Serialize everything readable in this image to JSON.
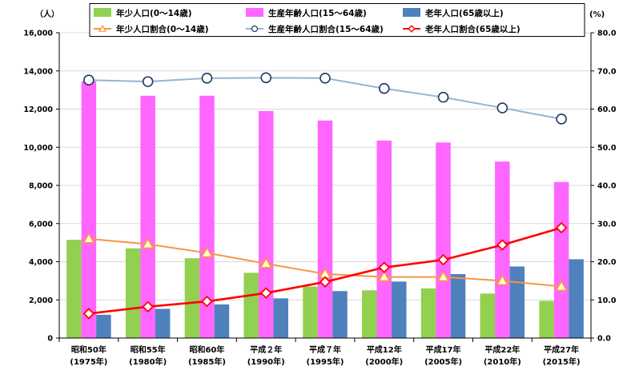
{
  "chart_data": {
    "type": "bar",
    "categories": [
      [
        "昭和50年",
        "(1975年)"
      ],
      [
        "昭和55年",
        "(1980年)"
      ],
      [
        "昭和60年",
        "(1985年)"
      ],
      [
        "平成２年",
        "(1990年)"
      ],
      [
        "平成７年",
        "(1995年)"
      ],
      [
        "平成12年",
        "(2000年)"
      ],
      [
        "平成17年",
        "(2005年)"
      ],
      [
        "平成22年",
        "(2010年)"
      ],
      [
        "平成27年",
        "(2015年)"
      ]
    ],
    "left_axis": {
      "unit": "（人）",
      "ylim": [
        0,
        16000
      ],
      "ticks": [
        "0",
        "2,000",
        "4,000",
        "6,000",
        "8,000",
        "10,000",
        "12,000",
        "14,000",
        "16,000"
      ]
    },
    "right_axis": {
      "unit": "(%)",
      "ylim": [
        0,
        80
      ],
      "ticks": [
        "0.0",
        "10.0",
        "20.0",
        "30.0",
        "40.0",
        "50.0",
        "60.0",
        "70.0",
        "80.0"
      ]
    },
    "bar_series": [
      {
        "name": "年少人口(0～14歳)",
        "color": "#92d050",
        "values": [
          5150,
          4700,
          4180,
          3420,
          2700,
          2500,
          2600,
          2330,
          1950
        ]
      },
      {
        "name": "生産年齢人口(15～64歳)",
        "color": "#ff66ff",
        "values": [
          13450,
          12700,
          12700,
          11900,
          11400,
          10350,
          10250,
          9250,
          8180
        ]
      },
      {
        "name": "老年人口(65歳以上)",
        "color": "#4f81bd",
        "values": [
          1220,
          1530,
          1760,
          2080,
          2460,
          2960,
          3350,
          3750,
          4130
        ]
      }
    ],
    "line_series": [
      {
        "name": "年少人口割合(0～14歳)",
        "color": "#f79646",
        "marker": "triangle",
        "values": [
          26.0,
          24.6,
          22.3,
          19.5,
          16.8,
          16.0,
          16.0,
          15.0,
          13.5
        ]
      },
      {
        "name": "生産年齢人口割合(15～64歳)",
        "color": "#95b3d7",
        "marker": "circle",
        "values": [
          67.6,
          67.2,
          68.1,
          68.2,
          68.1,
          65.4,
          63.1,
          60.3,
          57.4
        ]
      },
      {
        "name": "老年人口割合(65歳以上)",
        "color": "#ff0000",
        "marker": "diamond",
        "values": [
          6.4,
          8.2,
          9.6,
          11.8,
          14.7,
          18.5,
          20.5,
          24.4,
          28.9
        ]
      }
    ]
  }
}
